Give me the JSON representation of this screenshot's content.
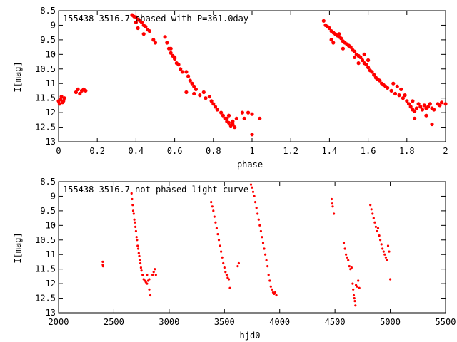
{
  "chart_data": [
    {
      "type": "scatter",
      "title": "155438-3516.7 phased with P=361.0day",
      "xlabel": "phase",
      "ylabel": "I[mag]",
      "xlim": [
        0,
        2
      ],
      "ylim": [
        8.5,
        13
      ],
      "y_inverted": true,
      "grid": false,
      "marker_color": "#ff0000",
      "xticks": [
        "0",
        "0.2",
        "0.4",
        "0.6",
        "0.8",
        "1",
        "1.2",
        "1.4",
        "1.6",
        "1.8",
        "2"
      ],
      "yticks": [
        "8.5",
        "9",
        "9.5",
        "10",
        "10.5",
        "11",
        "11.5",
        "12",
        "12.5",
        "13"
      ],
      "series": [
        {
          "points": [
            [
              0.0,
              11.6
            ],
            [
              0.01,
              11.55
            ],
            [
              0.02,
              11.65
            ],
            [
              0.03,
              11.5
            ],
            [
              0.005,
              11.7
            ],
            [
              0.015,
              11.45
            ],
            [
              0.025,
              11.6
            ],
            [
              0.09,
              11.3
            ],
            [
              0.1,
              11.2
            ],
            [
              0.11,
              11.35
            ],
            [
              0.12,
              11.25
            ],
            [
              0.13,
              11.2
            ],
            [
              0.14,
              11.25
            ],
            [
              0.38,
              8.65
            ],
            [
              0.39,
              8.7
            ],
            [
              0.4,
              8.72
            ],
            [
              0.41,
              8.8
            ],
            [
              0.42,
              8.85
            ],
            [
              0.43,
              8.9
            ],
            [
              0.44,
              9.0
            ],
            [
              0.45,
              9.05
            ],
            [
              0.46,
              9.15
            ],
            [
              0.47,
              9.2
            ],
            [
              0.4,
              8.9
            ],
            [
              0.41,
              9.1
            ],
            [
              0.44,
              9.3
            ],
            [
              0.49,
              9.5
            ],
            [
              0.5,
              9.6
            ],
            [
              0.55,
              9.4
            ],
            [
              0.56,
              9.6
            ],
            [
              0.57,
              9.8
            ],
            [
              0.58,
              9.95
            ],
            [
              0.59,
              10.05
            ],
            [
              0.6,
              10.15
            ],
            [
              0.61,
              10.3
            ],
            [
              0.62,
              10.35
            ],
            [
              0.63,
              10.5
            ],
            [
              0.64,
              10.6
            ],
            [
              0.6,
              10.1
            ],
            [
              0.58,
              9.8
            ],
            [
              0.66,
              10.6
            ],
            [
              0.67,
              10.75
            ],
            [
              0.68,
              10.9
            ],
            [
              0.69,
              11.0
            ],
            [
              0.7,
              11.1
            ],
            [
              0.71,
              11.2
            ],
            [
              0.66,
              11.3
            ],
            [
              0.7,
              11.35
            ],
            [
              0.73,
              11.4
            ],
            [
              0.75,
              11.3
            ],
            [
              0.76,
              11.5
            ],
            [
              0.78,
              11.45
            ],
            [
              0.79,
              11.6
            ],
            [
              0.8,
              11.7
            ],
            [
              0.81,
              11.8
            ],
            [
              0.82,
              11.9
            ],
            [
              0.84,
              12.0
            ],
            [
              0.85,
              12.1
            ],
            [
              0.86,
              12.2
            ],
            [
              0.87,
              12.3
            ],
            [
              0.88,
              12.35
            ],
            [
              0.89,
              12.45
            ],
            [
              0.9,
              12.4
            ],
            [
              0.91,
              12.5
            ],
            [
              0.87,
              12.2
            ],
            [
              0.88,
              12.1
            ],
            [
              0.9,
              12.3
            ],
            [
              0.92,
              12.2
            ],
            [
              0.95,
              12.0
            ],
            [
              0.96,
              12.2
            ],
            [
              0.98,
              12.0
            ],
            [
              1.0,
              12.05
            ],
            [
              1.04,
              12.2
            ],
            [
              1.0,
              12.75
            ]
          ]
        },
        {
          "points": [
            [
              1.37,
              8.85
            ],
            [
              1.38,
              9.0
            ],
            [
              1.39,
              9.05
            ],
            [
              1.4,
              9.1
            ],
            [
              1.41,
              9.2
            ],
            [
              1.42,
              9.25
            ],
            [
              1.43,
              9.3
            ],
            [
              1.44,
              9.35
            ],
            [
              1.45,
              9.4
            ],
            [
              1.46,
              9.45
            ],
            [
              1.47,
              9.55
            ],
            [
              1.48,
              9.6
            ],
            [
              1.49,
              9.65
            ],
            [
              1.5,
              9.7
            ],
            [
              1.51,
              9.75
            ],
            [
              1.52,
              9.85
            ],
            [
              1.53,
              9.9
            ],
            [
              1.54,
              10.0
            ],
            [
              1.55,
              10.05
            ],
            [
              1.56,
              10.1
            ],
            [
              1.57,
              10.2
            ],
            [
              1.58,
              10.3
            ],
            [
              1.59,
              10.35
            ],
            [
              1.6,
              10.45
            ],
            [
              1.61,
              10.55
            ],
            [
              1.62,
              10.6
            ],
            [
              1.41,
              9.5
            ],
            [
              1.42,
              9.6
            ],
            [
              1.45,
              9.3
            ],
            [
              1.47,
              9.8
            ],
            [
              1.5,
              9.7
            ],
            [
              1.53,
              10.1
            ],
            [
              1.55,
              10.3
            ],
            [
              1.58,
              10.0
            ],
            [
              1.6,
              10.2
            ],
            [
              1.63,
              10.7
            ],
            [
              1.64,
              10.8
            ],
            [
              1.65,
              10.85
            ],
            [
              1.66,
              10.9
            ],
            [
              1.67,
              11.0
            ],
            [
              1.68,
              11.05
            ],
            [
              1.69,
              11.1
            ],
            [
              1.7,
              11.15
            ],
            [
              1.72,
              11.25
            ],
            [
              1.74,
              11.35
            ],
            [
              1.76,
              11.4
            ],
            [
              1.78,
              11.5
            ],
            [
              1.8,
              11.6
            ],
            [
              1.73,
              11.0
            ],
            [
              1.75,
              11.1
            ],
            [
              1.77,
              11.2
            ],
            [
              1.79,
              11.4
            ],
            [
              1.81,
              11.7
            ],
            [
              1.83,
              11.6
            ],
            [
              1.82,
              11.8
            ],
            [
              1.83,
              11.9
            ],
            [
              1.84,
              11.95
            ],
            [
              1.85,
              11.85
            ],
            [
              1.86,
              11.7
            ],
            [
              1.87,
              11.8
            ],
            [
              1.88,
              11.9
            ],
            [
              1.89,
              11.75
            ],
            [
              1.9,
              11.85
            ],
            [
              1.91,
              11.8
            ],
            [
              1.92,
              11.7
            ],
            [
              1.93,
              11.85
            ],
            [
              1.94,
              11.9
            ],
            [
              1.84,
              12.2
            ],
            [
              1.9,
              12.1
            ],
            [
              1.93,
              12.4
            ],
            [
              1.96,
              11.7
            ],
            [
              1.98,
              11.65
            ],
            [
              2.0,
              11.7
            ],
            [
              1.97,
              11.75
            ]
          ]
        }
      ]
    },
    {
      "type": "scatter",
      "title": "155438-3516.7 not phased light curve",
      "xlabel": "hjd0",
      "ylabel": "I[mag]",
      "xlim": [
        2000,
        5500
      ],
      "ylim": [
        8.5,
        13
      ],
      "y_inverted": true,
      "grid": false,
      "marker_color": "#ff0000",
      "xticks": [
        "2000",
        "2500",
        "3000",
        "3500",
        "4000",
        "4500",
        "5000",
        "5500"
      ],
      "yticks": [
        "8.5",
        "9",
        "9.5",
        "10",
        "10.5",
        "11",
        "11.5",
        "12",
        "12.5",
        "13"
      ],
      "series": [
        {
          "points": [
            [
              2400,
              11.25
            ],
            [
              2400,
              11.35
            ],
            [
              2402,
              11.4
            ],
            [
              2660,
              8.9
            ],
            [
              2665,
              9.1
            ],
            [
              2670,
              9.3
            ],
            [
              2675,
              9.5
            ],
            [
              2680,
              9.6
            ],
            [
              2685,
              9.8
            ],
            [
              2690,
              9.9
            ],
            [
              2695,
              10.05
            ],
            [
              2700,
              10.2
            ],
            [
              2705,
              10.4
            ],
            [
              2710,
              10.5
            ],
            [
              2715,
              10.7
            ],
            [
              2720,
              10.8
            ],
            [
              2725,
              10.95
            ],
            [
              2730,
              11.05
            ],
            [
              2735,
              11.2
            ],
            [
              2740,
              11.3
            ],
            [
              2745,
              11.45
            ],
            [
              2750,
              11.55
            ],
            [
              2760,
              11.7
            ],
            [
              2770,
              11.85
            ],
            [
              2780,
              11.9
            ],
            [
              2790,
              11.95
            ],
            [
              2800,
              12.0
            ],
            [
              2810,
              11.9
            ],
            [
              2820,
              12.2
            ],
            [
              2830,
              12.4
            ],
            [
              2850,
              11.7
            ],
            [
              2860,
              11.6
            ],
            [
              2870,
              11.5
            ],
            [
              2880,
              11.7
            ],
            [
              2820,
              11.85
            ],
            [
              2800,
              11.7
            ]
          ]
        },
        {
          "points": [
            [
              3380,
              9.2
            ],
            [
              3390,
              9.35
            ],
            [
              3400,
              9.5
            ],
            [
              3410,
              9.7
            ],
            [
              3420,
              9.9
            ],
            [
              3430,
              10.1
            ],
            [
              3440,
              10.3
            ],
            [
              3450,
              10.5
            ],
            [
              3460,
              10.7
            ],
            [
              3470,
              10.9
            ],
            [
              3480,
              11.1
            ],
            [
              3490,
              11.3
            ],
            [
              3500,
              11.45
            ],
            [
              3510,
              11.6
            ],
            [
              3520,
              11.7
            ],
            [
              3530,
              11.8
            ],
            [
              3540,
              11.85
            ],
            [
              3550,
              12.15
            ],
            [
              3620,
              11.4
            ],
            [
              3630,
              11.3
            ],
            [
              3740,
              8.6
            ],
            [
              3750,
              8.7
            ],
            [
              3760,
              8.85
            ],
            [
              3770,
              9.0
            ],
            [
              3780,
              9.2
            ],
            [
              3790,
              9.4
            ],
            [
              3800,
              9.6
            ],
            [
              3810,
              9.8
            ],
            [
              3820,
              10.0
            ],
            [
              3830,
              10.2
            ],
            [
              3840,
              10.4
            ],
            [
              3850,
              10.6
            ],
            [
              3860,
              10.8
            ],
            [
              3870,
              11.0
            ],
            [
              3880,
              11.2
            ],
            [
              3890,
              11.4
            ],
            [
              3900,
              11.7
            ],
            [
              3910,
              11.9
            ],
            [
              3920,
              12.1
            ],
            [
              3930,
              12.2
            ],
            [
              3940,
              12.3
            ],
            [
              3950,
              12.35
            ],
            [
              3960,
              12.3
            ],
            [
              3970,
              12.4
            ]
          ]
        },
        {
          "points": [
            [
              4470,
              9.1
            ],
            [
              4475,
              9.25
            ],
            [
              4480,
              9.35
            ],
            [
              4490,
              9.6
            ],
            [
              4580,
              10.6
            ],
            [
              4590,
              10.8
            ],
            [
              4600,
              11.0
            ],
            [
              4610,
              11.1
            ],
            [
              4620,
              11.2
            ],
            [
              4630,
              11.4
            ],
            [
              4640,
              11.5
            ],
            [
              4650,
              11.45
            ],
            [
              4660,
              12.0
            ],
            [
              4665,
              12.2
            ],
            [
              4670,
              12.4
            ],
            [
              4675,
              12.5
            ],
            [
              4680,
              12.6
            ],
            [
              4685,
              12.75
            ],
            [
              4690,
              12.05
            ],
            [
              4700,
              12.1
            ],
            [
              4710,
              11.9
            ],
            [
              4720,
              12.15
            ],
            [
              4820,
              9.3
            ],
            [
              4830,
              9.45
            ],
            [
              4840,
              9.6
            ],
            [
              4850,
              9.75
            ],
            [
              4860,
              9.9
            ],
            [
              4870,
              10.05
            ],
            [
              4880,
              10.2
            ],
            [
              4890,
              10.1
            ],
            [
              4900,
              10.35
            ],
            [
              4910,
              10.5
            ],
            [
              4920,
              10.65
            ],
            [
              4930,
              10.8
            ],
            [
              4940,
              10.9
            ],
            [
              4950,
              11.0
            ],
            [
              4960,
              11.1
            ],
            [
              4970,
              11.2
            ],
            [
              4980,
              10.7
            ],
            [
              4990,
              10.9
            ],
            [
              5000,
              11.85
            ]
          ]
        }
      ]
    }
  ]
}
